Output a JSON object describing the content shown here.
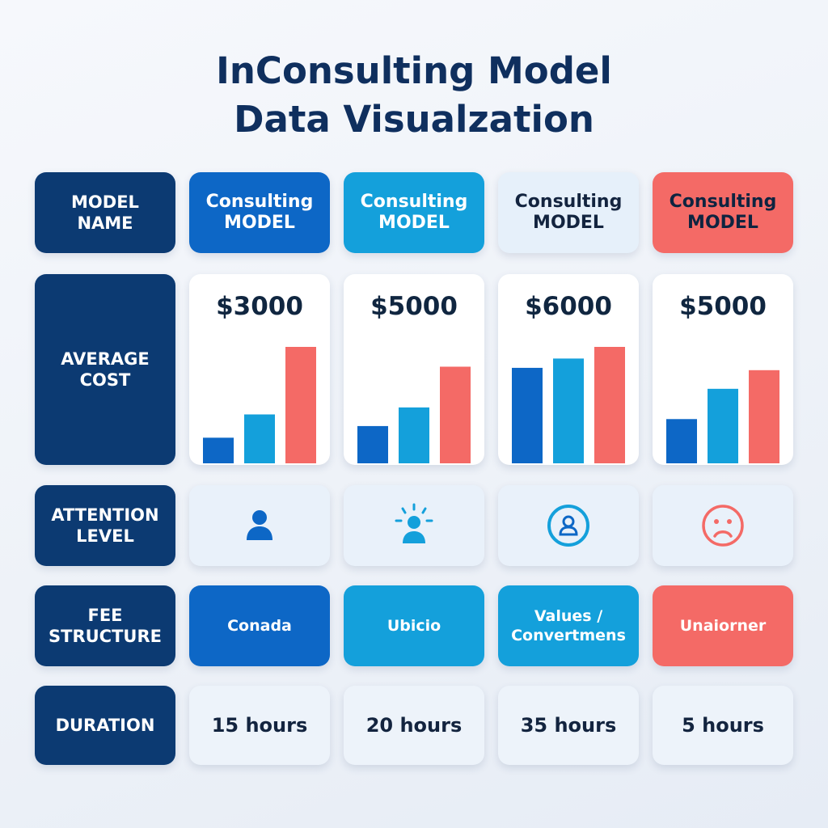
{
  "title": {
    "line1": "InConsulting Model",
    "line2": "Data Visualzation"
  },
  "rows": {
    "model_name": {
      "label_line1": "MODEL",
      "label_line2": "NAME"
    },
    "average_cost": {
      "label_line1": "AVERAGE",
      "label_line2": "COST"
    },
    "attention_level": {
      "label_line1": "ATTENTION",
      "label_line2": "LEVEL"
    },
    "fee_structure": {
      "label_line1": "FEE",
      "label_line2": "STRUCTURE"
    },
    "duration": {
      "label": "DURATION"
    }
  },
  "columns": [
    {
      "name_line1": "Consulting",
      "name_line2": "MODEL",
      "cost": "$3000",
      "attention_icon": "person-icon",
      "fee_line1": "Conada",
      "fee_line2": "",
      "duration": "15 hours"
    },
    {
      "name_line1": "Consulting",
      "name_line2": "MODEL",
      "cost": "$5000",
      "attention_icon": "person-rays-icon",
      "fee_line1": "Ubicio",
      "fee_line2": "",
      "duration": "20 hours"
    },
    {
      "name_line1": "Consulting",
      "name_line2": "MODEL",
      "cost": "$6000",
      "attention_icon": "person-circle-icon",
      "fee_line1": "Values /",
      "fee_line2": "Convertmens",
      "duration": "35 hours"
    },
    {
      "name_line1": "Consulting",
      "name_line2": "MODEL",
      "cost": "$5000",
      "attention_icon": "sad-face-icon",
      "fee_line1": "Unaiorner",
      "fee_line2": "",
      "duration": "5 hours"
    }
  ],
  "colors": {
    "label_bg": "#0c3a72",
    "dark_blue": "#0d67c6",
    "light_blue": "#14a0db",
    "pale_blue": "#e6f0fa",
    "coral": "#f46a66",
    "title": "#0f2f5e"
  },
  "chart_data": [
    {
      "type": "bar",
      "series": [
        {
          "values": [
            22,
            42,
            100
          ]
        }
      ],
      "ylim": [
        0,
        100
      ]
    },
    {
      "type": "bar",
      "series": [
        {
          "values": [
            32,
            48,
            83
          ]
        }
      ],
      "ylim": [
        0,
        100
      ]
    },
    {
      "type": "bar",
      "series": [
        {
          "values": [
            82,
            90,
            100
          ]
        }
      ],
      "ylim": [
        0,
        100
      ]
    },
    {
      "type": "bar",
      "series": [
        {
          "values": [
            38,
            64,
            80
          ]
        }
      ],
      "ylim": [
        0,
        100
      ]
    }
  ]
}
